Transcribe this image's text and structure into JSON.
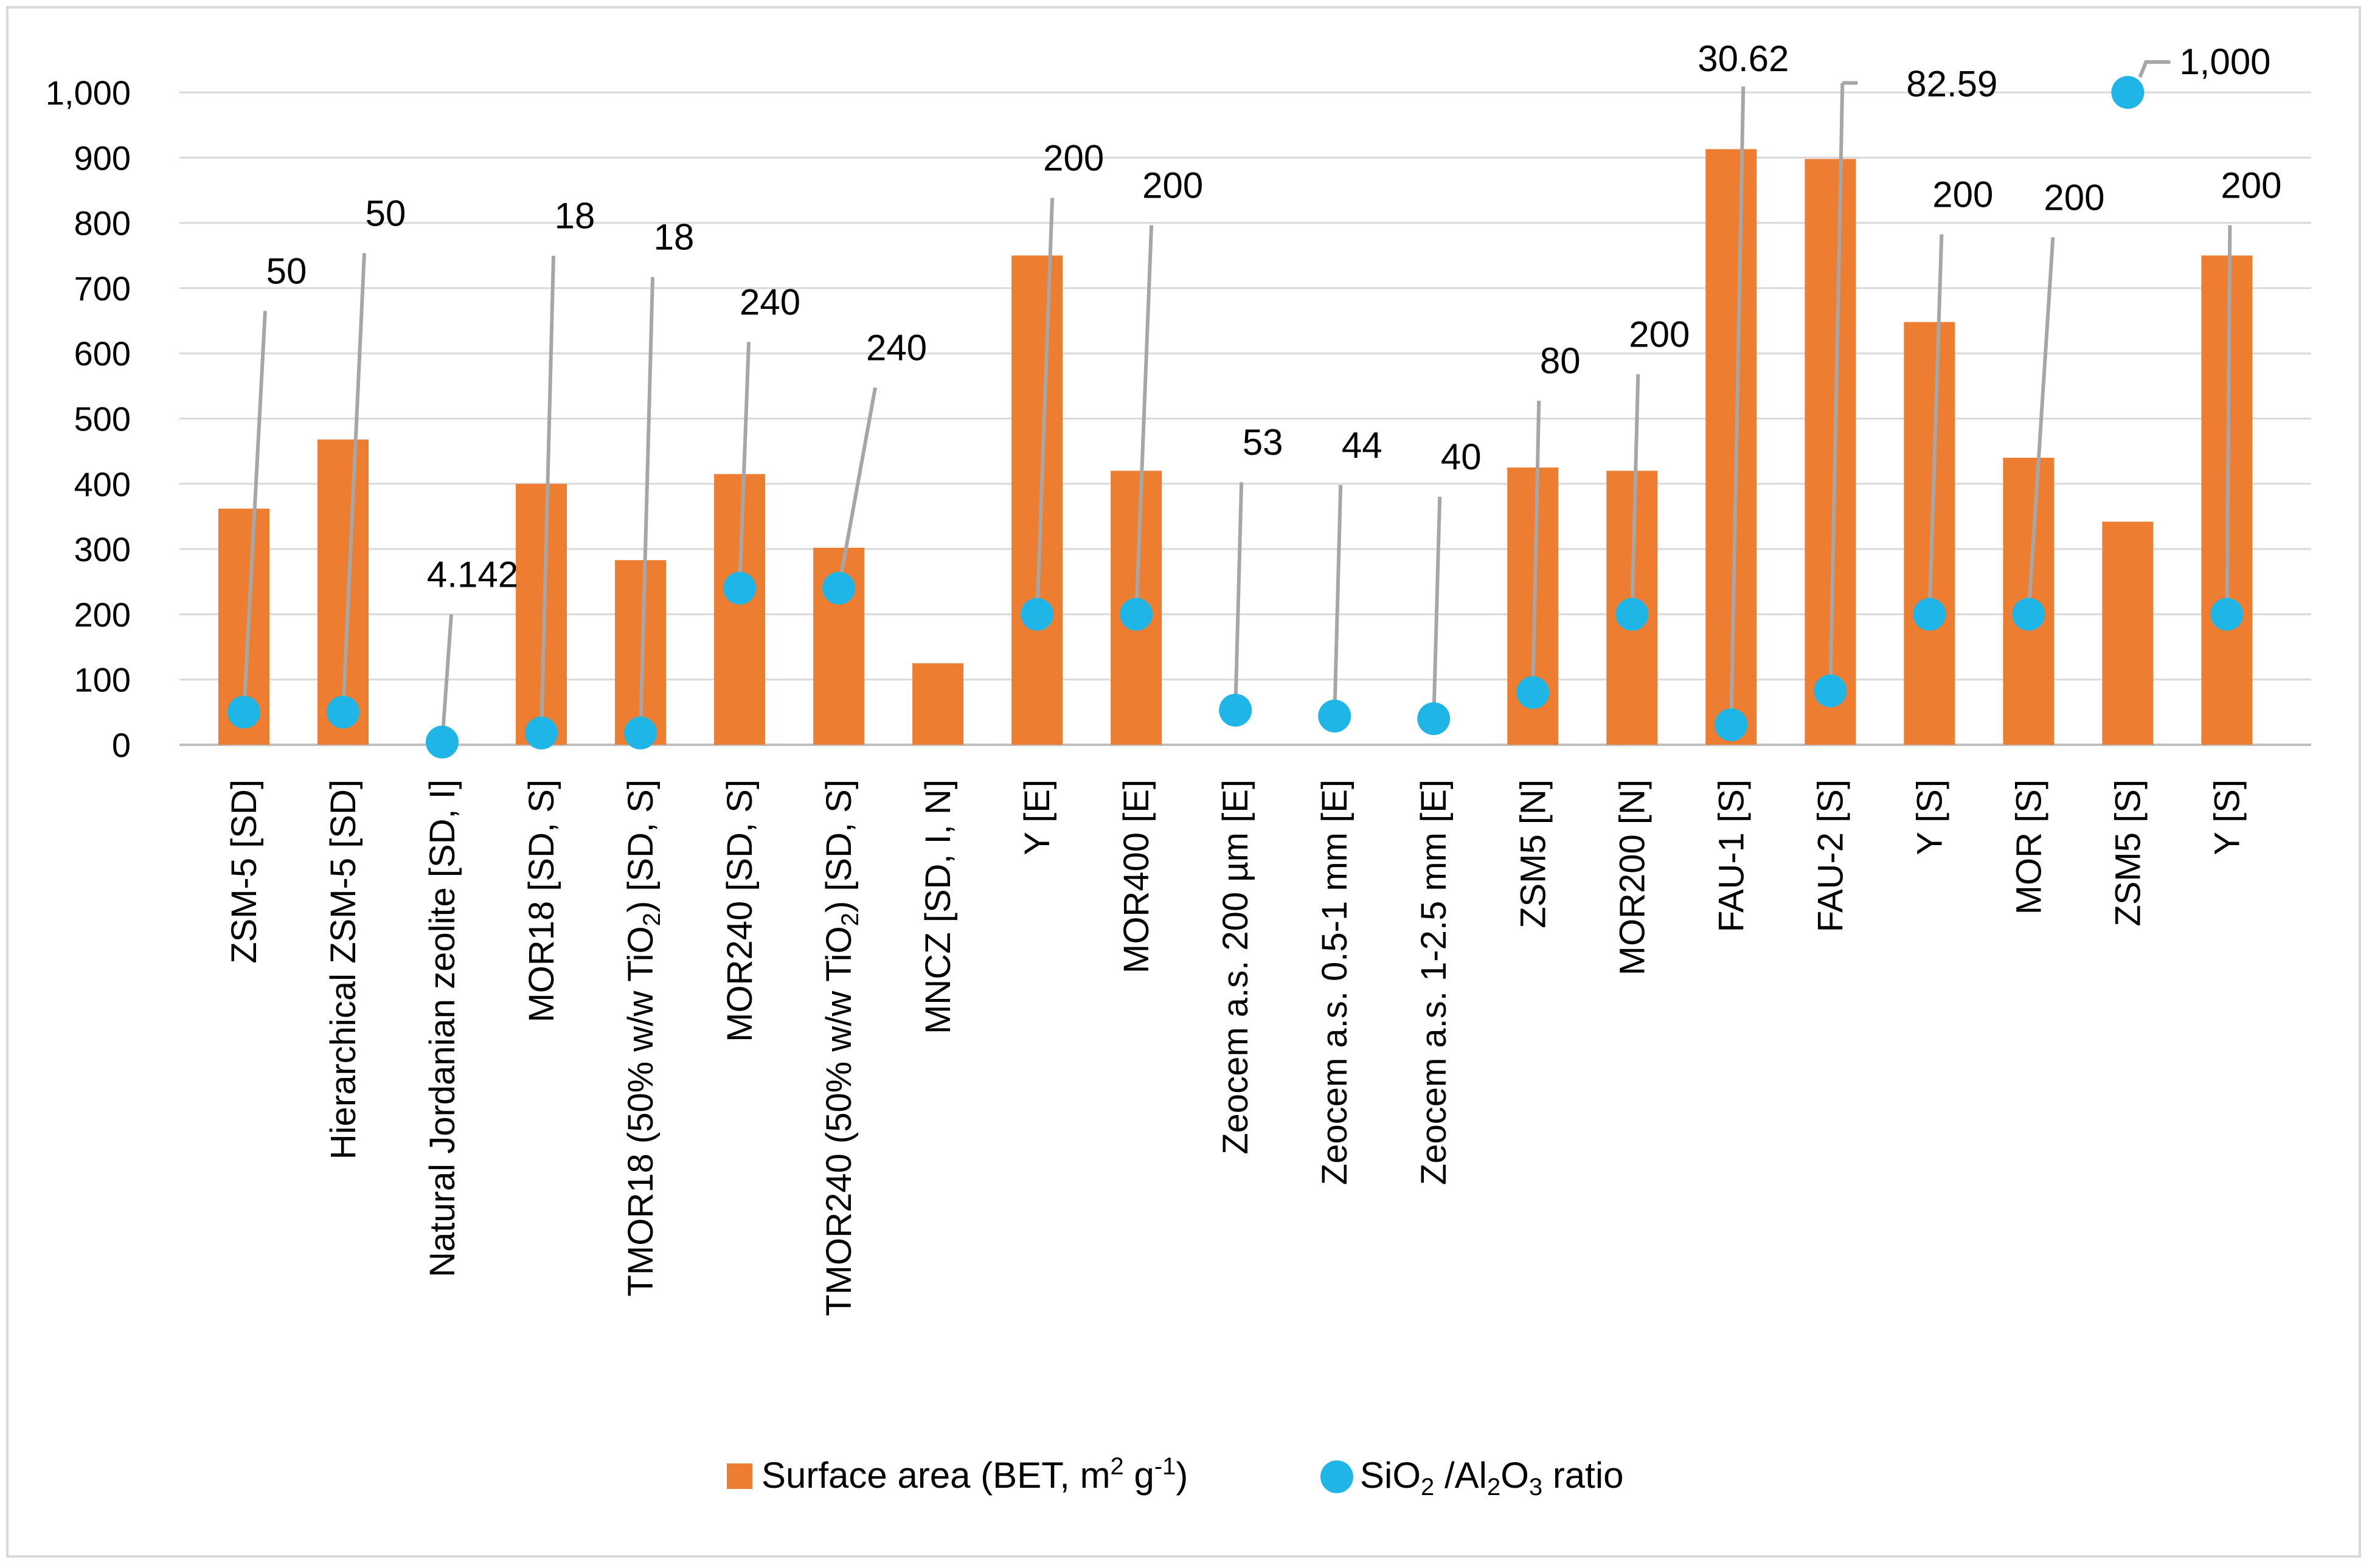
{
  "chart_data": {
    "type": "bar",
    "title": "",
    "xlabel": "",
    "ylabel": "",
    "ylim": [
      0,
      1000
    ],
    "yticks": [
      "0",
      "100",
      "200",
      "300",
      "400",
      "500",
      "600",
      "700",
      "800",
      "900",
      "1,000"
    ],
    "categories": [
      {
        "text": "ZSM-5 [SD]"
      },
      {
        "text": "Hierarchical ZSM-5 [SD]"
      },
      {
        "text": "Natural Jordanian zeolite [SD, I]"
      },
      {
        "text": "MOR18 [SD, S]"
      },
      {
        "text": "TMOR18 (50% w/w TiO",
        "sub": "2",
        "tail": ") [SD, S]"
      },
      {
        "text": "MOR240 [SD, S]"
      },
      {
        "text": "TMOR240 (50% w/w TiO",
        "sub": "2",
        "tail": ") [SD, S]"
      },
      {
        "text": "MNCZ [SD, I, N]"
      },
      {
        "text": "Y [E]"
      },
      {
        "text": "MOR400 [E]"
      },
      {
        "text": "Zeocem a.s. 200 µm [E]"
      },
      {
        "text": "Zeocem a.s. 0.5-1 mm [E]"
      },
      {
        "text": "Zeocem a.s. 1-2.5 mm [E]"
      },
      {
        "text": "ZSM5 [N]"
      },
      {
        "text": "MOR200 [N]"
      },
      {
        "text": "FAU-1 [S]"
      },
      {
        "text": "FAU-2 [S]"
      },
      {
        "text": "Y [S]"
      },
      {
        "text": "MOR [S]"
      },
      {
        "text": "ZSM5 [S]"
      },
      {
        "text": "Y [S]"
      }
    ],
    "series": [
      {
        "name": "Surface area (BET, m2g-1)",
        "legend": {
          "pre": "Surface area (BET, m",
          "sup1": "2",
          "mid": " g",
          "sup2": "-1",
          "post": ")"
        },
        "kind": "bar",
        "color": "#ed7d31",
        "values": [
          362,
          468,
          null,
          400,
          283,
          415,
          302,
          125,
          750,
          420,
          null,
          null,
          null,
          425,
          420,
          913,
          898,
          648,
          440,
          342,
          750
        ]
      },
      {
        "name": "SiO2/Al2O3 ratio",
        "legend": {
          "a": "SiO",
          "s1": "2",
          "b": " /Al",
          "s2": "2",
          "c": "O",
          "s3": "3",
          "d": " ratio"
        },
        "kind": "scatter",
        "color": "#1fb5e6",
        "values": [
          50,
          50,
          4.142,
          18,
          18,
          240,
          240,
          null,
          200,
          200,
          53,
          44,
          40,
          80,
          200,
          30.62,
          82.59,
          200,
          200,
          null,
          200
        ],
        "labels": [
          "50",
          "50",
          "4.142",
          "18",
          "18",
          "240",
          "240",
          null,
          "200",
          "200",
          "53",
          "44",
          "40",
          "80",
          "200",
          "30.62",
          "82.59",
          "200",
          "200",
          null,
          "200"
        ]
      }
    ],
    "extra_point": {
      "value": 1000,
      "label": "1,000"
    },
    "grid": true,
    "legend_position": "bottom"
  }
}
